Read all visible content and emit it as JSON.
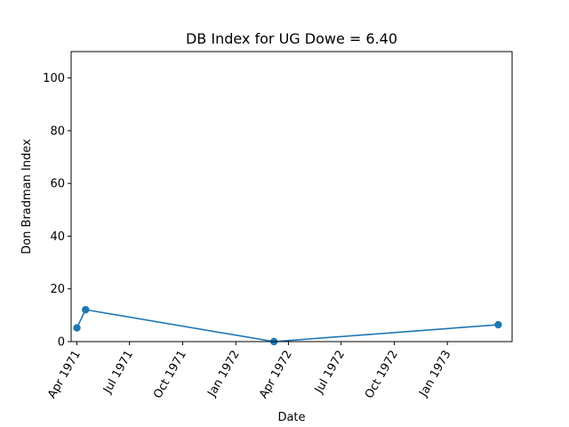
{
  "chart_data": {
    "type": "line",
    "title": "DB Index for UG Dowe = 6.40",
    "xlabel": "Date",
    "ylabel": "Don Bradman Index",
    "x_axis_type": "date",
    "xlim": [
      "1971-03-22",
      "1973-04-23"
    ],
    "ylim": [
      0,
      110
    ],
    "x_ticks": [
      {
        "date": "1971-04-01",
        "label": "Apr 1971"
      },
      {
        "date": "1971-07-01",
        "label": "Jul 1971"
      },
      {
        "date": "1971-10-01",
        "label": "Oct 1971"
      },
      {
        "date": "1972-01-01",
        "label": "Jan 1972"
      },
      {
        "date": "1972-04-01",
        "label": "Apr 1972"
      },
      {
        "date": "1972-07-01",
        "label": "Jul 1972"
      },
      {
        "date": "1972-10-01",
        "label": "Oct 1972"
      },
      {
        "date": "1973-01-01",
        "label": "Jan 1973"
      }
    ],
    "y_ticks": [
      {
        "value": 0,
        "label": "0"
      },
      {
        "value": 20,
        "label": "20"
      },
      {
        "value": 40,
        "label": "40"
      },
      {
        "value": 60,
        "label": "60"
      },
      {
        "value": 80,
        "label": "80"
      },
      {
        "value": 100,
        "label": "100"
      }
    ],
    "grid": false,
    "series": [
      {
        "color": "#1f77b4",
        "marker": "circle",
        "points": [
          {
            "x": "1971-04-01",
            "y": 5.2
          },
          {
            "x": "1971-04-16",
            "y": 12.1
          },
          {
            "x": "1972-03-07",
            "y": 0
          },
          {
            "x": "1973-03-30",
            "y": 6.4
          }
        ]
      }
    ]
  }
}
